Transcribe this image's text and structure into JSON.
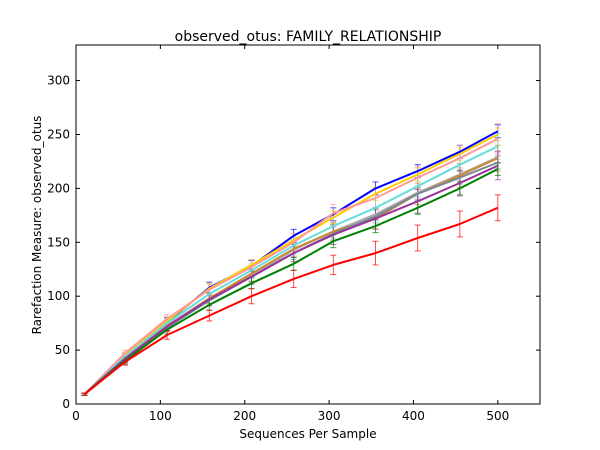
{
  "chart_data": {
    "type": "line",
    "title": "observed_otus: FAMILY_RELATIONSHIP",
    "xlabel": "Sequences Per Sample",
    "ylabel": "Rarefaction Measure: observed_otus",
    "xlim": [
      0,
      550
    ],
    "ylim": [
      0,
      333
    ],
    "xticks": [
      0,
      100,
      200,
      300,
      400,
      500
    ],
    "yticks": [
      0,
      50,
      100,
      150,
      200,
      250,
      300
    ],
    "xtick_labels": [
      "0",
      "100",
      "200",
      "300",
      "400",
      "500"
    ],
    "ytick_labels": [
      "0",
      "50",
      "100",
      "150",
      "200",
      "250",
      "300"
    ],
    "grid": false,
    "legend": "none",
    "x": [
      10,
      58,
      108,
      158,
      208,
      258,
      305,
      355,
      405,
      455,
      500
    ],
    "series": [
      {
        "color": "#0000ff",
        "values": [
          9,
          44,
          76,
          108,
          128,
          156,
          176,
          200,
          216,
          234,
          253
        ],
        "errors": [
          1,
          3,
          4,
          5,
          5,
          6,
          6,
          6,
          6,
          6,
          6
        ]
      },
      {
        "color": "#ffcc00",
        "values": [
          9,
          45,
          77,
          107,
          129,
          152,
          173,
          195,
          213,
          232,
          250
        ],
        "errors": [
          1,
          3,
          4,
          5,
          5,
          6,
          6,
          6,
          6,
          6,
          6
        ]
      },
      {
        "color": "#ff9999",
        "values": [
          9,
          47,
          79,
          106,
          127,
          150,
          177,
          191,
          210,
          228,
          246
        ],
        "errors": [
          1,
          3,
          4,
          5,
          7,
          8,
          8,
          9,
          10,
          12,
          14
        ]
      },
      {
        "color": "#66dddd",
        "values": [
          9,
          44,
          75,
          102,
          124,
          147,
          165,
          182,
          202,
          222,
          239
        ],
        "errors": [
          1,
          3,
          4,
          5,
          6,
          8,
          8,
          9,
          10,
          10,
          12
        ]
      },
      {
        "color": "#aaaaaa",
        "values": [
          9,
          42,
          73,
          98,
          119,
          143,
          160,
          176,
          196,
          213,
          229
        ],
        "errors": [
          1,
          3,
          4,
          5,
          5,
          6,
          6,
          6,
          6,
          6,
          6
        ]
      },
      {
        "color": "#cc8833",
        "values": [
          9,
          42,
          72,
          98,
          121,
          144,
          160,
          172,
          195,
          212,
          228
        ],
        "errors": [
          1,
          3,
          4,
          5,
          7,
          8,
          8,
          9,
          10,
          11,
          12
        ]
      },
      {
        "color": "#778899",
        "values": [
          9,
          41,
          71,
          96,
          118,
          140,
          158,
          174,
          195,
          210,
          224
        ],
        "errors": [
          1,
          3,
          4,
          5,
          5,
          6,
          6,
          6,
          6,
          6,
          6
        ]
      },
      {
        "color": "#993399",
        "values": [
          9,
          42,
          72,
          97,
          118,
          140,
          157,
          172,
          188,
          205,
          221
        ],
        "errors": [
          1,
          3,
          4,
          6,
          7,
          8,
          9,
          10,
          11,
          12,
          13
        ]
      },
      {
        "color": "#008000",
        "values": [
          9,
          40,
          69,
          92,
          112,
          130,
          151,
          165,
          182,
          200,
          218
        ],
        "errors": [
          1,
          3,
          4,
          5,
          5,
          6,
          6,
          6,
          6,
          6,
          6
        ]
      },
      {
        "color": "#ff0000",
        "values": [
          9,
          39,
          64,
          82,
          100,
          116,
          129,
          140,
          154,
          167,
          182
        ],
        "errors": [
          1,
          3,
          4,
          5,
          7,
          8,
          9,
          11,
          12,
          12,
          12
        ]
      }
    ]
  }
}
